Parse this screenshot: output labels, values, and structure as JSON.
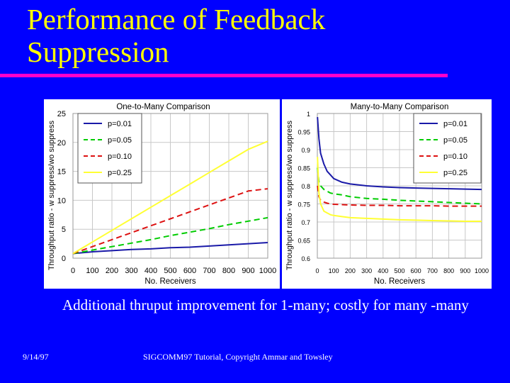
{
  "slide": {
    "title_line1": "Performance of Feedback",
    "title_line2": "Suppression",
    "bullet": "Additional thruput improvement for 1-many; costly for many -many",
    "footer_date": "9/14/97",
    "footer_text": "SIGCOMM97 Tutorial, Copyright Ammar and Towsley"
  },
  "colors": {
    "background": "#0000ff",
    "title": "#ffff00",
    "rule": "#ff00cc",
    "chart_text": "#000000",
    "grid": "#c8c8c8"
  },
  "chart_data": [
    {
      "type": "line",
      "title": "One-to-Many Comparison",
      "xlabel": "No. Receivers",
      "ylabel": "Throughput ratio - w suppress/wo suppress",
      "xlim": [
        0,
        1000
      ],
      "ylim": [
        0,
        25
      ],
      "xticks": [
        0,
        100,
        200,
        300,
        400,
        500,
        600,
        700,
        800,
        900,
        1000
      ],
      "xtick_labels": [
        "0",
        "100",
        "200",
        "300",
        "400",
        "500",
        "600",
        "700",
        "800",
        "900",
        "1000"
      ],
      "yticks": [
        0,
        5,
        10,
        15,
        20,
        25
      ],
      "ytick_labels": [
        "0",
        "5",
        "10",
        "15",
        "20",
        "25"
      ],
      "grid": true,
      "legend_position": "top-left",
      "series": [
        {
          "name": "p=0.01",
          "color": "#1a1aa8",
          "dash": "solid",
          "x": [
            0,
            100,
            200,
            300,
            400,
            500,
            600,
            700,
            800,
            900,
            1000
          ],
          "y": [
            0.8,
            1.1,
            1.3,
            1.5,
            1.6,
            1.8,
            1.9,
            2.1,
            2.3,
            2.5,
            2.7
          ]
        },
        {
          "name": "p=0.05",
          "color": "#00cc00",
          "dash": "dashed",
          "x": [
            0,
            100,
            200,
            300,
            400,
            500,
            600,
            700,
            800,
            900,
            1000
          ],
          "y": [
            0.8,
            1.4,
            2.0,
            2.6,
            3.2,
            3.9,
            4.5,
            5.1,
            5.8,
            6.4,
            7.0
          ]
        },
        {
          "name": "p=0.10",
          "color": "#dd1111",
          "dash": "dashed",
          "x": [
            0,
            100,
            200,
            300,
            400,
            500,
            600,
            700,
            800,
            900,
            1000
          ],
          "y": [
            0.8,
            2.0,
            3.2,
            4.4,
            5.6,
            6.8,
            8.0,
            9.2,
            10.4,
            11.6,
            12.0
          ]
        },
        {
          "name": "p=0.25",
          "color": "#ffff33",
          "dash": "solid",
          "x": [
            0,
            100,
            200,
            300,
            400,
            500,
            600,
            700,
            800,
            900,
            1000
          ],
          "y": [
            0.8,
            2.8,
            4.8,
            6.8,
            8.8,
            10.8,
            12.8,
            14.8,
            16.8,
            18.8,
            20.2
          ]
        }
      ]
    },
    {
      "type": "line",
      "title": "Many-to-Many Comparison",
      "xlabel": "No. Receivers",
      "ylabel": "Throughput ratio - w suppress/wo suppress",
      "xlim": [
        0,
        1000
      ],
      "ylim": [
        0.6,
        1.0
      ],
      "xticks": [
        0,
        100,
        200,
        300,
        400,
        500,
        600,
        700,
        800,
        900,
        1000
      ],
      "xtick_labels": [
        "0",
        "100",
        "200",
        "300",
        "400",
        "500",
        "600",
        "700",
        "800",
        "900",
        "1000"
      ],
      "yticks": [
        0.6,
        0.65,
        0.7,
        0.75,
        0.8,
        0.85,
        0.9,
        0.95,
        1.0
      ],
      "ytick_labels": [
        "0.6",
        "0.65",
        "0.7",
        "0.75",
        "0.8",
        "0.85",
        "0.9",
        "0.95",
        "1"
      ],
      "grid": true,
      "legend_position": "top-right",
      "series": [
        {
          "name": "p=0.01",
          "color": "#1a1aa8",
          "dash": "solid",
          "x": [
            1,
            10,
            20,
            40,
            60,
            80,
            100,
            150,
            200,
            300,
            400,
            500,
            600,
            700,
            800,
            900,
            1000
          ],
          "y": [
            0.99,
            0.93,
            0.89,
            0.86,
            0.84,
            0.83,
            0.82,
            0.81,
            0.805,
            0.8,
            0.797,
            0.795,
            0.794,
            0.793,
            0.792,
            0.791,
            0.79
          ]
        },
        {
          "name": "p=0.05",
          "color": "#00cc00",
          "dash": "dashed",
          "x": [
            1,
            10,
            20,
            40,
            60,
            80,
            100,
            150,
            200,
            300,
            400,
            500,
            600,
            700,
            800,
            900,
            1000
          ],
          "y": [
            0.85,
            0.81,
            0.8,
            0.79,
            0.785,
            0.78,
            0.778,
            0.775,
            0.77,
            0.765,
            0.763,
            0.76,
            0.758,
            0.756,
            0.754,
            0.752,
            0.75
          ]
        },
        {
          "name": "p=0.10",
          "color": "#dd1111",
          "dash": "dashed",
          "x": [
            1,
            10,
            20,
            40,
            60,
            80,
            100,
            150,
            200,
            300,
            400,
            500,
            600,
            700,
            800,
            900,
            1000
          ],
          "y": [
            0.8,
            0.77,
            0.76,
            0.755,
            0.752,
            0.75,
            0.749,
            0.748,
            0.747,
            0.746,
            0.746,
            0.745,
            0.745,
            0.745,
            0.744,
            0.744,
            0.744
          ]
        },
        {
          "name": "p=0.25",
          "color": "#ffff33",
          "dash": "solid",
          "x": [
            1,
            10,
            20,
            40,
            60,
            80,
            100,
            150,
            200,
            300,
            400,
            500,
            600,
            700,
            800,
            900,
            1000
          ],
          "y": [
            0.88,
            0.78,
            0.75,
            0.73,
            0.725,
            0.72,
            0.718,
            0.715,
            0.712,
            0.71,
            0.708,
            0.706,
            0.705,
            0.704,
            0.703,
            0.702,
            0.702
          ]
        }
      ]
    }
  ]
}
